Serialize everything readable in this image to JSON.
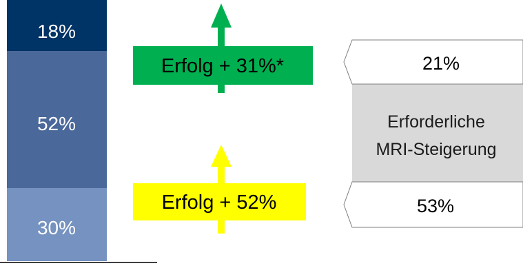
{
  "chart_data": {
    "type": "bar",
    "stacked_segments": [
      {
        "label": "18%",
        "value": 18,
        "color": "#003366"
      },
      {
        "label": "52%",
        "value": 52,
        "color": "#4a6899"
      },
      {
        "label": "30%",
        "value": 30,
        "color": "#7592c0"
      }
    ],
    "annotations": [
      {
        "text": "Erfolg + 31%*",
        "color": "#00b050"
      },
      {
        "text": "Erfolg + 52%",
        "color": "#ffff00"
      }
    ],
    "required": {
      "top": "21%",
      "middle_line1": "Erforderliche",
      "middle_line2": "MRI-Steigerung",
      "bottom": "53%",
      "middle_color": "#d9d9d9"
    }
  }
}
